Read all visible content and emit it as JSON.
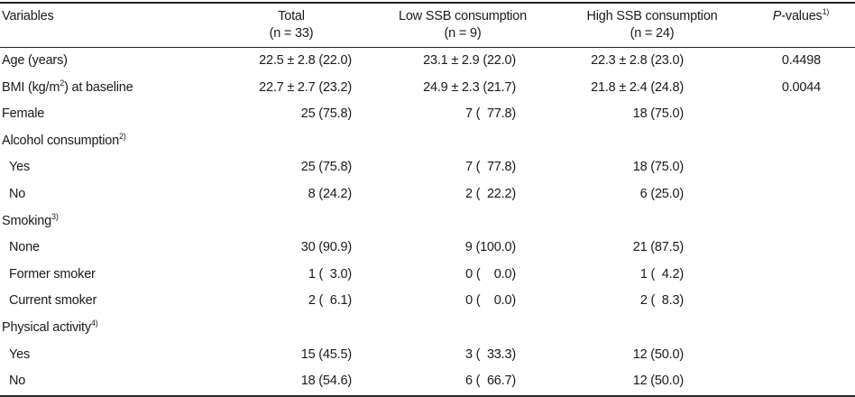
{
  "header": {
    "variables": "Variables",
    "total": {
      "label": "Total",
      "n": "(n = 33)"
    },
    "low": {
      "label": "Low SSB consumption",
      "n": "(n = 9)"
    },
    "high": {
      "label": "High SSB consumption",
      "n": "(n = 24)"
    },
    "pvalues": {
      "italic": "P",
      "rest": "-values",
      "note": "1)"
    }
  },
  "rows": [
    {
      "var": "Age (years)",
      "total": "22.5 ± 2.8 (22.0)",
      "low": "23.1 ± 2.9 (22.0)",
      "high": "22.3 ± 2.8 (23.0)",
      "p": "0.4498"
    },
    {
      "var_pre": "BMI (kg/m",
      "var_sup": "2",
      "var_post": ") at baseline",
      "total": "22.7 ± 2.7 (23.2)",
      "low": "24.9 ± 2.3 (21.7)",
      "high": "21.8 ± 2.4 (24.8)",
      "p": "0.0044"
    },
    {
      "var": "Female",
      "total": "25 (75.8)",
      "low": "7 (  77.8)",
      "high": "18 (75.0)",
      "p": ""
    },
    {
      "var": "Alcohol consumption",
      "note": "2)"
    },
    {
      "var": "Yes",
      "total": "25 (75.8)",
      "low": "7 (  77.8)",
      "high": "18 (75.0)",
      "p": ""
    },
    {
      "var": "No",
      "total": "8 (24.2)",
      "low": "2 (  22.2)",
      "high": "6 (25.0)",
      "p": ""
    },
    {
      "var": "Smoking",
      "note": "3)"
    },
    {
      "var": "None",
      "total": "30 (90.9)",
      "low": "9 (100.0)",
      "high": "21 (87.5)",
      "p": ""
    },
    {
      "var": "Former smoker",
      "total": "1 (  3.0)",
      "low": "0 (    0.0)",
      "high": "1 (  4.2)",
      "p": ""
    },
    {
      "var": "Current smoker",
      "total": "2 (  6.1)",
      "low": "0 (    0.0)",
      "high": "2 (  8.3)",
      "p": ""
    },
    {
      "var": "Physical activity",
      "note": "4)"
    },
    {
      "var": "Yes",
      "total": "15 (45.5)",
      "low": "3 (  33.3)",
      "high": "12 (50.0)",
      "p": ""
    },
    {
      "var": "No",
      "total": "18 (54.6)",
      "low": "6 (  66.7)",
      "high": "12 (50.0)",
      "p": ""
    }
  ]
}
